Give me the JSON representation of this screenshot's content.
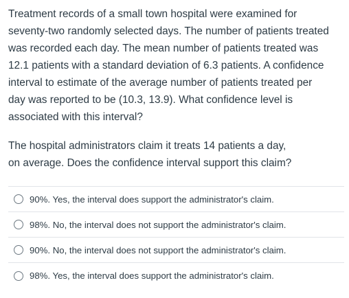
{
  "question": {
    "paragraph_1_lines": [
      "Treatment records of a small town hospital were examined for",
      "seventy-two randomly selected days.  The number of patients treated",
      "was recorded each day.  The mean number of patients treated was",
      "12.1 patients with a standard deviation of 6.3 patients.  A confidence",
      "interval to estimate of the average number of patients treated per",
      "day was reported to be (10.3, 13.9).  What confidence level is",
      "associated with this interval?"
    ],
    "paragraph_2_lines": [
      "The hospital administrators claim it treats 14 patients a day,",
      "on average.  Does the confidence interval support this claim?"
    ]
  },
  "answers": [
    {
      "label": "90%. Yes, the interval does support the administrator's claim."
    },
    {
      "label": "98%. No, the interval does not support the administrator's claim."
    },
    {
      "label": "90%. No, the interval does not support the administrator's claim."
    },
    {
      "label": "98%. Yes, the interval does support the administrator's claim."
    }
  ]
}
